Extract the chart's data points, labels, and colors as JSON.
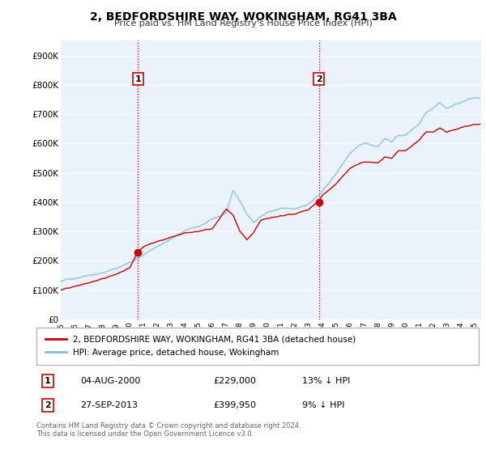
{
  "title": "2, BEDFORDSHIRE WAY, WOKINGHAM, RG41 3BA",
  "subtitle": "Price paid vs. HM Land Registry's House Price Index (HPI)",
  "ylim": [
    0,
    950000
  ],
  "yticks": [
    0,
    100000,
    200000,
    300000,
    400000,
    500000,
    600000,
    700000,
    800000,
    900000
  ],
  "xlim_start": 1995.0,
  "xlim_end": 2025.5,
  "purchase1_year": 2000.6,
  "purchase1_price": 229000,
  "purchase1_label": "1",
  "purchase2_year": 2013.73,
  "purchase2_price": 399950,
  "purchase2_label": "2",
  "hpi_color": "#7fbfdf",
  "price_color": "#cc0000",
  "vline_color": "#cc0000",
  "background_color": "#ffffff",
  "plot_bg_color": "#eaf2fb",
  "grid_color": "#ffffff",
  "legend_label_price": "2, BEDFORDSHIRE WAY, WOKINGHAM, RG41 3BA (detached house)",
  "legend_label_hpi": "HPI: Average price, detached house, Wokingham",
  "footer": "Contains HM Land Registry data © Crown copyright and database right 2024.\nThis data is licensed under the Open Government Licence v3.0.",
  "table_row1": [
    "1",
    "04-AUG-2000",
    "£229,000",
    "13% ↓ HPI"
  ],
  "table_row2": [
    "2",
    "27-SEP-2013",
    "£399,950",
    "9% ↓ HPI"
  ],
  "hpi_key_years": [
    1995,
    1996,
    1997,
    1998,
    1999,
    2000,
    2001,
    2002,
    2003,
    2004,
    2005,
    2006,
    2007,
    2007.5,
    2008,
    2008.5,
    2009,
    2009.5,
    2010,
    2011,
    2012,
    2013,
    2014,
    2015,
    2016,
    2017,
    2018,
    2018.5,
    2019,
    2019.5,
    2020,
    2020.5,
    2021,
    2021.5,
    2022,
    2022.5,
    2023,
    2023.5,
    2024,
    2024.5,
    2025
  ],
  "hpi_key_vals": [
    130000,
    140000,
    155000,
    165000,
    178000,
    200000,
    225000,
    255000,
    280000,
    305000,
    320000,
    340000,
    360000,
    440000,
    400000,
    360000,
    330000,
    350000,
    365000,
    375000,
    370000,
    390000,
    430000,
    490000,
    560000,
    590000,
    580000,
    610000,
    600000,
    620000,
    620000,
    640000,
    660000,
    700000,
    720000,
    740000,
    720000,
    730000,
    740000,
    750000,
    755000
  ],
  "price_key_years": [
    1995,
    1996,
    1997,
    1998,
    1999,
    2000,
    2000.6,
    2001,
    2002,
    2003,
    2004,
    2005,
    2006,
    2007,
    2007.5,
    2008,
    2008.5,
    2009,
    2009.5,
    2010,
    2011,
    2012,
    2013,
    2013.73,
    2014,
    2015,
    2016,
    2017,
    2018,
    2018.5,
    2019,
    2019.5,
    2020,
    2020.5,
    2021,
    2021.5,
    2022,
    2022.5,
    2023,
    2023.5,
    2024,
    2024.5,
    2025
  ],
  "price_key_vals": [
    100000,
    108000,
    120000,
    132000,
    148000,
    170000,
    229000,
    245000,
    265000,
    280000,
    295000,
    300000,
    310000,
    380000,
    360000,
    305000,
    275000,
    300000,
    340000,
    345000,
    350000,
    355000,
    370000,
    399950,
    420000,
    460000,
    510000,
    530000,
    530000,
    550000,
    545000,
    570000,
    570000,
    590000,
    610000,
    640000,
    640000,
    655000,
    640000,
    650000,
    655000,
    660000,
    665000
  ]
}
